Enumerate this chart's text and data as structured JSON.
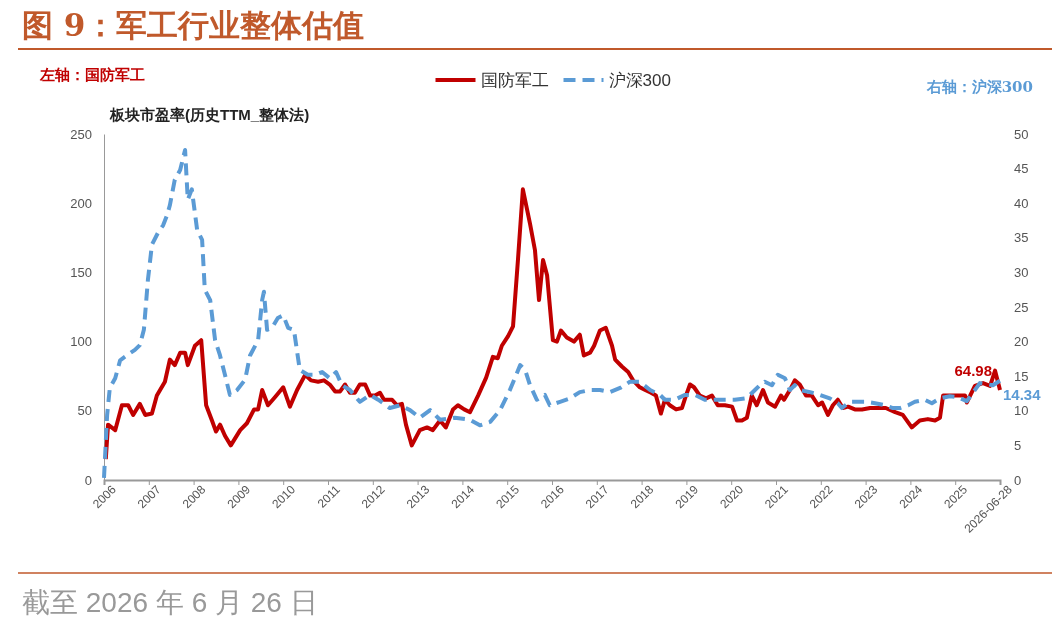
{
  "chart_data": {
    "type": "line",
    "title": "图 9：军工行业整体估值",
    "ylabel": "板块市盈率(历史TTM_整体法)",
    "legend": "top",
    "grid": false,
    "xlim": [
      2006,
      2026
    ],
    "xticks": [
      2006,
      2007,
      2008,
      2009,
      2010,
      2011,
      2012,
      2013,
      2014,
      2015,
      2016,
      2017,
      2018,
      2019,
      2020,
      2021,
      2022,
      2023,
      2024,
      2025,
      {
        "value": 2026,
        "label": "2026-06-28"
      }
    ],
    "ylim": [
      0,
      250
    ],
    "yticks": [
      0,
      50,
      100,
      150,
      200,
      250
    ],
    "y2lim": [
      0,
      50
    ],
    "y2ticks": [
      0,
      5,
      10,
      15,
      20,
      25,
      30,
      35,
      40,
      45,
      50
    ],
    "annotations": [
      "左轴：国防军工",
      "右轴：沪深300",
      "截至 2026 年 6 月 26 日"
    ],
    "series": [
      {
        "name": "国防军工",
        "color": "#c00000",
        "line_style": "solid",
        "x": [
          2006.04,
          2006.09,
          2006.25,
          2006.4,
          2006.54,
          2006.65,
          2006.8,
          2006.92,
          2007.07,
          2007.18,
          2007.36,
          2007.47,
          2007.58,
          2007.7,
          2007.81,
          2007.87,
          2008.03,
          2008.17,
          2008.28,
          2008.41,
          2008.5,
          2008.59,
          2008.7,
          2008.83,
          2009.04,
          2009.19,
          2009.35,
          2009.44,
          2009.53,
          2009.66,
          2009.82,
          2010.0,
          2010.15,
          2010.31,
          2010.49,
          2010.62,
          2010.78,
          2010.91,
          2011.04,
          2011.16,
          2011.27,
          2011.38,
          2011.49,
          2011.6,
          2011.71,
          2011.83,
          2011.94,
          2012.05,
          2012.16,
          2012.25,
          2012.43,
          2012.54,
          2012.65,
          2012.74,
          2012.87,
          2013.05,
          2013.21,
          2013.34,
          2013.5,
          2013.63,
          2013.79,
          2013.9,
          2014.04,
          2014.17,
          2014.35,
          2014.53,
          2014.68,
          2014.79,
          2014.88,
          2015.02,
          2015.13,
          2015.24,
          2015.35,
          2015.51,
          2015.62,
          2015.71,
          2015.8,
          2015.89,
          2016.02,
          2016.11,
          2016.2,
          2016.33,
          2016.49,
          2016.62,
          2016.71,
          2016.85,
          2016.94,
          2017.07,
          2017.2,
          2017.34,
          2017.41,
          2017.56,
          2017.7,
          2017.81,
          2017.96,
          2018.08,
          2018.21,
          2018.32,
          2018.43,
          2018.52,
          2018.63,
          2018.77,
          2018.9,
          2018.99,
          2019.08,
          2019.17,
          2019.3,
          2019.44,
          2019.57,
          2019.7,
          2019.86,
          2020.02,
          2020.13,
          2020.24,
          2020.35,
          2020.46,
          2020.57,
          2020.71,
          2020.82,
          2020.98,
          2021.11,
          2021.18,
          2021.31,
          2021.42,
          2021.53,
          2021.67,
          2021.8,
          2021.94,
          2022.03,
          2022.16,
          2022.27,
          2022.38,
          2022.49,
          2022.61,
          2022.76,
          2022.92,
          2023.1,
          2023.28,
          2023.45,
          2023.66,
          2023.83,
          2024.03,
          2024.21,
          2024.39,
          2024.55,
          2024.66,
          2024.73,
          2025.22,
          2025.26,
          2025.44,
          2025.62,
          2025.78,
          2025.89,
          2026.0
        ],
        "values": [
          15,
          40,
          36,
          54,
          54,
          47,
          55,
          47,
          48,
          61,
          71,
          87,
          83,
          92,
          92,
          83,
          97,
          101,
          54,
          43,
          35,
          40,
          32,
          25,
          36,
          41,
          51,
          51,
          65,
          54,
          60,
          67,
          53,
          65,
          76,
          72,
          71,
          72,
          69,
          64,
          64,
          69,
          63,
          63,
          69,
          69,
          61,
          61,
          63,
          58,
          58,
          54,
          55,
          40,
          25,
          36,
          38,
          36,
          43,
          38,
          51,
          54,
          51,
          49,
          61,
          74,
          89,
          88,
          97,
          104,
          111,
          159,
          210,
          185,
          166,
          130,
          159,
          148,
          101,
          100,
          108,
          103,
          100,
          105,
          90,
          92,
          97,
          108,
          110,
          97,
          87,
          82,
          78,
          72,
          67,
          65,
          63,
          61,
          48,
          58,
          54,
          51,
          52,
          61,
          69,
          67,
          61,
          59,
          61,
          54,
          54,
          53,
          43,
          43,
          45,
          61,
          54,
          65,
          56,
          53,
          61,
          58,
          65,
          72,
          69,
          61,
          61,
          54,
          56,
          47,
          54,
          58,
          52,
          53,
          51,
          51,
          52,
          52,
          52,
          49,
          47,
          38,
          43,
          44,
          43,
          45,
          61,
          61,
          56,
          68,
          70,
          68,
          79,
          64.98
        ],
        "value_labels": [
          null,
          null,
          null,
          null,
          null,
          null,
          null,
          null,
          null,
          null,
          null,
          null,
          null,
          null,
          null,
          null,
          null,
          null,
          null,
          null,
          null,
          null,
          null,
          null,
          null,
          null,
          null,
          null,
          null,
          null,
          null,
          null,
          null,
          null,
          null,
          null,
          null,
          null,
          null,
          null,
          null,
          null,
          null,
          null,
          null,
          null,
          null,
          null,
          null,
          null,
          null,
          null,
          null,
          null,
          null,
          null,
          null,
          null,
          null,
          null,
          null,
          null,
          null,
          null,
          null,
          null,
          null,
          null,
          null,
          null,
          null,
          null,
          null,
          null,
          null,
          null,
          null,
          null,
          null,
          null,
          null,
          null,
          null,
          null,
          null,
          null,
          null,
          null,
          null,
          null,
          null,
          null,
          null,
          null,
          null,
          null,
          null,
          null,
          null,
          null,
          null,
          null,
          null,
          null,
          null,
          null,
          null,
          null,
          null,
          null,
          null,
          null,
          null,
          null,
          null,
          null,
          null,
          null,
          null,
          null,
          null,
          null,
          null,
          null,
          null,
          null,
          null,
          null,
          null,
          null,
          null,
          null,
          null,
          null,
          null,
          null,
          null,
          null,
          null,
          null,
          null,
          null,
          null,
          null,
          null,
          null,
          null,
          null,
          null,
          null,
          null,
          null,
          null,
          "64.98"
        ]
      },
      {
        "name": "沪深300",
        "color": "#5b9bd5",
        "line_style": "dashed",
        "axis": "y2",
        "x": [
          2006.0,
          2006.07,
          2006.13,
          2006.25,
          2006.36,
          2006.51,
          2006.69,
          2006.8,
          2006.89,
          2006.98,
          2007.07,
          2007.21,
          2007.32,
          2007.41,
          2007.47,
          2007.58,
          2007.7,
          2007.81,
          2007.87,
          2007.96,
          2008.08,
          2008.19,
          2008.25,
          2008.37,
          2008.48,
          2008.59,
          2008.7,
          2008.81,
          2008.97,
          2009.15,
          2009.26,
          2009.44,
          2009.53,
          2009.57,
          2009.64,
          2009.75,
          2009.88,
          2010.0,
          2010.11,
          2010.24,
          2010.37,
          2010.55,
          2010.71,
          2010.87,
          2011.04,
          2011.18,
          2011.31,
          2011.49,
          2011.71,
          2011.94,
          2012.12,
          2012.38,
          2012.61,
          2012.83,
          2013.05,
          2013.28,
          2013.5,
          2013.83,
          2014.17,
          2014.39,
          2014.62,
          2014.84,
          2015.06,
          2015.29,
          2015.4,
          2015.51,
          2015.66,
          2015.84,
          2015.95,
          2016.18,
          2016.4,
          2016.62,
          2016.85,
          2017.07,
          2017.29,
          2017.52,
          2017.74,
          2017.96,
          2018.19,
          2018.41,
          2018.52,
          2018.74,
          2018.97,
          2019.19,
          2019.41,
          2019.64,
          2019.86,
          2020.08,
          2020.31,
          2020.42,
          2020.53,
          2020.64,
          2020.75,
          2020.91,
          2021.04,
          2021.2,
          2021.31,
          2021.42,
          2021.53,
          2021.76,
          2021.98,
          2022.2,
          2022.38,
          2022.47,
          2022.65,
          2022.83,
          2023.01,
          2023.21,
          2023.43,
          2023.61,
          2023.77,
          2023.95,
          2024.1,
          2024.32,
          2024.48,
          2024.66,
          2024.88,
          2025.04,
          2025.26,
          2025.55,
          2025.84,
          2026.0
        ],
        "values": [
          0.3,
          9.4,
          13.3,
          14.7,
          17.3,
          18,
          18.8,
          19.5,
          21.7,
          28.9,
          34,
          35.8,
          36.8,
          38.3,
          39.7,
          43.4,
          44.8,
          47.7,
          40.5,
          42,
          36.1,
          34.7,
          27.5,
          26,
          20.2,
          18,
          15.2,
          12.3,
          13,
          14.5,
          18,
          20.2,
          26,
          27.2,
          21.7,
          22,
          23.4,
          23.8,
          22,
          21.7,
          15.9,
          15.2,
          15.2,
          15.6,
          14.7,
          15.6,
          13.7,
          13,
          11.3,
          12.3,
          11.6,
          10.4,
          10.8,
          10.1,
          9,
          10.1,
          8.7,
          9,
          8.7,
          7.9,
          8.4,
          10.1,
          13,
          16.6,
          15.9,
          13.7,
          11.6,
          12.3,
          10.8,
          11.3,
          11.8,
          12.7,
          13,
          13,
          12.7,
          13.3,
          14.2,
          14.2,
          13,
          12.3,
          11.6,
          11.6,
          12.3,
          12.3,
          11.6,
          11.6,
          11.6,
          11.6,
          11.8,
          12.3,
          13,
          13.7,
          14.2,
          13.7,
          15.2,
          14.7,
          13,
          13.7,
          13,
          12.7,
          12.3,
          11.8,
          11.1,
          10.4,
          11.3,
          11.3,
          11.3,
          11.1,
          10.8,
          10.4,
          10.4,
          10.8,
          11.3,
          11.6,
          11.1,
          11.8,
          12.1,
          12,
          11.4,
          14,
          13.7,
          14.34
        ],
        "value_labels": [
          null,
          null,
          null,
          null,
          null,
          null,
          null,
          null,
          null,
          null,
          null,
          null,
          null,
          null,
          null,
          null,
          null,
          null,
          null,
          null,
          null,
          null,
          null,
          null,
          null,
          null,
          null,
          null,
          null,
          null,
          null,
          null,
          null,
          null,
          null,
          null,
          null,
          null,
          null,
          null,
          null,
          null,
          null,
          null,
          null,
          null,
          null,
          null,
          null,
          null,
          null,
          null,
          null,
          null,
          null,
          null,
          null,
          null,
          null,
          null,
          null,
          null,
          null,
          null,
          null,
          null,
          null,
          null,
          null,
          null,
          null,
          null,
          null,
          null,
          null,
          null,
          null,
          null,
          null,
          null,
          null,
          null,
          null,
          null,
          null,
          null,
          null,
          null,
          null,
          null,
          null,
          null,
          null,
          null,
          null,
          null,
          null,
          null,
          null,
          null,
          null,
          null,
          null,
          null,
          null,
          null,
          null,
          null,
          null,
          null,
          null,
          null,
          null,
          null,
          null,
          null,
          null,
          null,
          null,
          null,
          null,
          "14.34"
        ]
      }
    ]
  }
}
